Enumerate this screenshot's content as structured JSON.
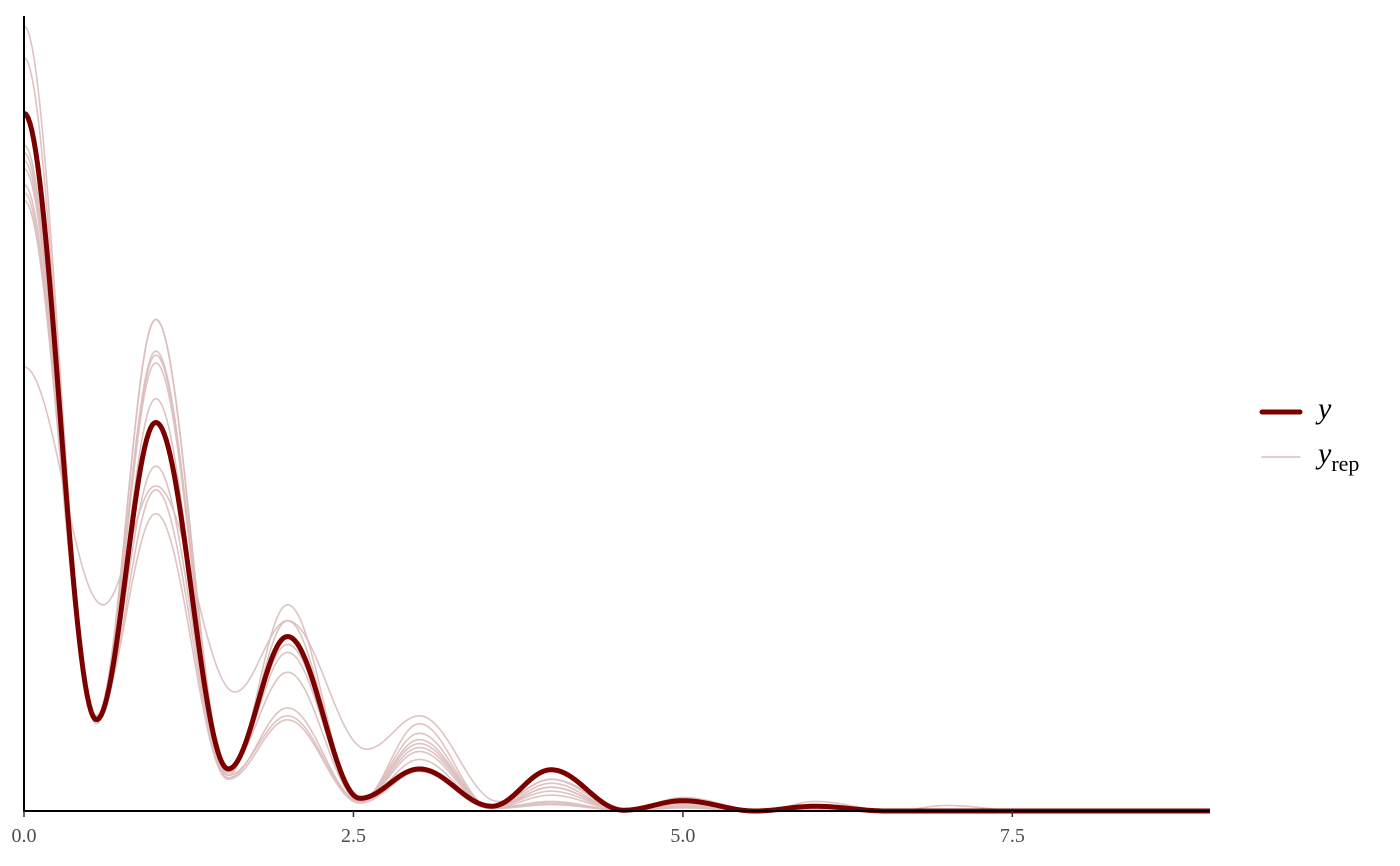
{
  "chart_data": {
    "type": "line",
    "xlim": [
      0,
      9
    ],
    "xticks": [
      {
        "value": 0,
        "label": "0.0"
      },
      {
        "value": 2.5,
        "label": "2.5"
      },
      {
        "value": 5,
        "label": "5.0"
      },
      {
        "value": 7.5,
        "label": "7.5"
      }
    ],
    "ylim": [
      0,
      1
    ],
    "y_axis_ticks": false,
    "grid": false,
    "legend_position": "right",
    "colors": {
      "y": "#7b0000",
      "yrep": "#dcbcbc",
      "axis": "#000000"
    },
    "series": [
      {
        "name": "y",
        "style": "thick",
        "peaks": [
          0.88,
          0.49,
          0.22,
          0.053,
          0.052,
          0.013,
          0.006,
          0.0,
          0.0
        ],
        "troughs": [
          0.115,
          0.053,
          0.016,
          0.006,
          0.001,
          0.0,
          0.0,
          0.0
        ]
      },
      {
        "name": "yrep",
        "style": "thin",
        "peaks": [
          0.99,
          0.62,
          0.26,
          0.11,
          0.02,
          0.005,
          0.002,
          0.0,
          0.0
        ],
        "troughs": [
          0.115,
          0.045,
          0.012,
          0.004,
          0.001,
          0.0,
          0.0,
          0.0
        ]
      },
      {
        "name": "yrep",
        "style": "thin",
        "peaks": [
          0.95,
          0.565,
          0.24,
          0.098,
          0.03,
          0.008,
          0.003,
          0.0,
          0.0
        ],
        "troughs": [
          0.11,
          0.048,
          0.014,
          0.004,
          0.001,
          0.0,
          0.0,
          0.0
        ]
      },
      {
        "name": "yrep",
        "style": "thin",
        "peaks": [
          0.83,
          0.62,
          0.22,
          0.085,
          0.04,
          0.01,
          0.004,
          0.001,
          0.0
        ],
        "troughs": [
          0.12,
          0.05,
          0.015,
          0.005,
          0.002,
          0.0,
          0.0,
          0.0
        ]
      },
      {
        "name": "yrep",
        "style": "thin",
        "peaks": [
          0.81,
          0.575,
          0.175,
          0.075,
          0.035,
          0.015,
          0.004,
          0.002,
          0.0
        ],
        "troughs": [
          0.115,
          0.055,
          0.013,
          0.004,
          0.001,
          0.0,
          0.0,
          0.0
        ]
      },
      {
        "name": "yrep",
        "style": "thin",
        "peaks": [
          0.82,
          0.52,
          0.2,
          0.08,
          0.025,
          0.006,
          0.002,
          0.0,
          0.0
        ],
        "troughs": [
          0.118,
          0.05,
          0.014,
          0.005,
          0.001,
          0.0,
          0.0,
          0.0
        ]
      },
      {
        "name": "yrep",
        "style": "thin",
        "peaks": [
          0.79,
          0.435,
          0.12,
          0.065,
          0.012,
          0.004,
          0.002,
          0.0,
          0.0
        ],
        "troughs": [
          0.12,
          0.045,
          0.012,
          0.004,
          0.001,
          0.0,
          0.0,
          0.0
        ]
      },
      {
        "name": "yrep",
        "style": "thin",
        "peaks": [
          0.78,
          0.405,
          0.13,
          0.055,
          0.01,
          0.006,
          0.002,
          0.0,
          0.0
        ],
        "troughs": [
          0.115,
          0.042,
          0.012,
          0.004,
          0.001,
          0.0,
          0.0,
          0.0
        ]
      },
      {
        "name": "yrep",
        "style": "thin",
        "peaks": [
          0.77,
          0.375,
          0.115,
          0.05,
          0.008,
          0.004,
          0.001,
          0.0,
          0.0
        ],
        "troughs": [
          0.12,
          0.04,
          0.01,
          0.003,
          0.001,
          0.0,
          0.0,
          0.0
        ]
      },
      {
        "name": "yrep",
        "style": "thin",
        "peaks": [
          0.84,
          0.58,
          0.21,
          0.09,
          0.03,
          0.01,
          0.003,
          0.0,
          0.0
        ],
        "troughs": [
          0.115,
          0.05,
          0.014,
          0.004,
          0.001,
          0.0,
          0.0,
          0.0
        ]
      },
      {
        "name": "yrep",
        "style": "thin",
        "smooth": true,
        "peaks": [
          0.56,
          0.41,
          0.24,
          0.12,
          0.04,
          0.017,
          0.012,
          0.007,
          0.0
        ],
        "troughs": [
          0.26,
          0.15,
          0.078,
          0.012,
          0.002,
          0.0,
          0.0,
          0.0
        ]
      }
    ],
    "legend": [
      {
        "label": "y",
        "subscript": "",
        "style": "thick"
      },
      {
        "label": "y",
        "subscript": "rep",
        "style": "thin"
      }
    ]
  }
}
